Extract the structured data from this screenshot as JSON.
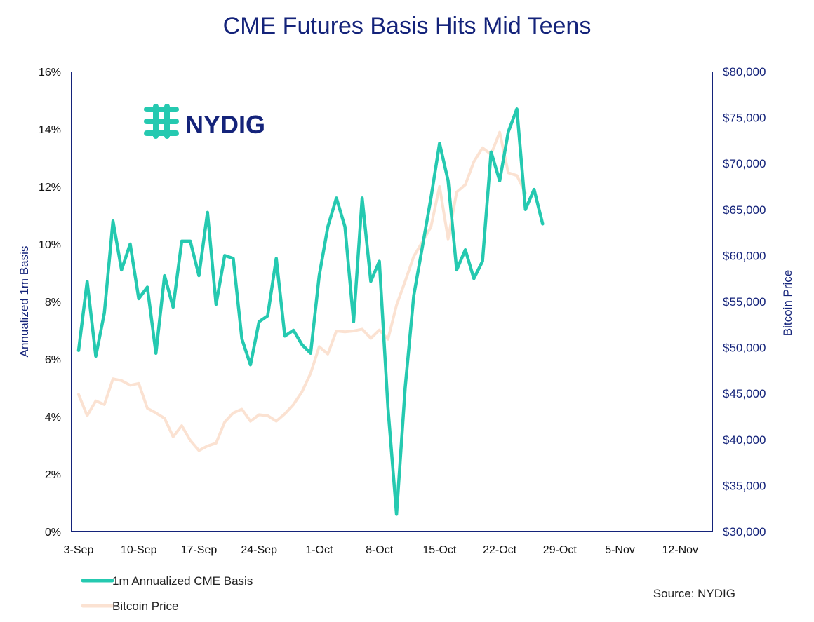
{
  "colors": {
    "basis": "#25c9b0",
    "price": "#fbe2d2",
    "axis": "#14237a",
    "text": "#111111"
  },
  "logo": {
    "text": "NYDIG",
    "icon": "nydig-logo-icon"
  },
  "source": "Source: NYDIG",
  "chart_data": {
    "type": "line",
    "title": "CME Futures Basis Hits Mid Teens",
    "ylabel": "Annualized 1m Basis",
    "y2label": "Bitcoin Price",
    "ylim": [
      0,
      16
    ],
    "y2lim": [
      30000,
      80000
    ],
    "x_tick_labels": [
      "3-Sep",
      "10-Sep",
      "17-Sep",
      "24-Sep",
      "1-Oct",
      "8-Oct",
      "15-Oct",
      "22-Oct",
      "29-Oct",
      "5-Nov",
      "12-Nov"
    ],
    "x_tick_days": [
      0,
      7,
      14,
      21,
      28,
      35,
      42,
      49,
      56,
      63,
      70
    ],
    "x_range": [
      0,
      73
    ],
    "y_tick_labels": [
      "0%",
      "2%",
      "4%",
      "6%",
      "8%",
      "10%",
      "12%",
      "14%",
      "16%"
    ],
    "y_tick_values": [
      0,
      2,
      4,
      6,
      8,
      10,
      12,
      14,
      16
    ],
    "y2_tick_labels": [
      "$30,000",
      "$35,000",
      "$40,000",
      "$45,000",
      "$50,000",
      "$55,000",
      "$60,000",
      "$65,000",
      "$70,000",
      "$75,000",
      "$80,000"
    ],
    "y2_tick_values": [
      30000,
      35000,
      40000,
      45000,
      50000,
      55000,
      60000,
      65000,
      70000,
      75000,
      80000
    ],
    "series": [
      {
        "name": "1m Annualized CME Basis",
        "axis": "left",
        "x": [
          0,
          1,
          2,
          3,
          4,
          5,
          6,
          7,
          8,
          9,
          10,
          11,
          12,
          13,
          14,
          15,
          16,
          17,
          18,
          19,
          20,
          21,
          22,
          23,
          24,
          25,
          26,
          27,
          28,
          29,
          30,
          31,
          32,
          33,
          34,
          35,
          36,
          37,
          38,
          39,
          40,
          41,
          42,
          43,
          44,
          45,
          46,
          47,
          48,
          49,
          50,
          51,
          52,
          53,
          54,
          55,
          56,
          57,
          58,
          59,
          60,
          61,
          62,
          63,
          64,
          65,
          66,
          67,
          68,
          69,
          70,
          71,
          72,
          73
        ],
        "values": [
          6.3,
          8.7,
          6.1,
          7.6,
          10.8,
          9.1,
          10.0,
          8.1,
          8.5,
          6.2,
          8.9,
          7.8,
          10.1,
          10.1,
          8.9,
          11.1,
          7.9,
          9.6,
          9.5,
          6.7,
          5.8,
          7.3,
          7.5,
          9.5,
          6.8,
          7.0,
          6.5,
          6.2,
          8.9,
          10.6,
          11.6,
          10.6,
          7.3,
          11.6,
          8.7,
          9.4,
          4.3,
          0.6,
          5.0,
          8.2,
          9.9,
          11.6,
          13.5,
          12.2,
          9.1,
          9.8,
          8.8,
          9.4,
          13.2,
          12.2,
          13.9,
          14.7,
          11.2,
          11.9,
          10.7,
          null,
          null,
          null,
          null,
          null,
          null,
          null,
          null,
          null,
          null,
          null,
          null,
          null,
          null,
          null,
          null,
          null,
          null,
          null
        ]
      },
      {
        "name": "Bitcoin Price",
        "axis": "right",
        "x": [
          0,
          1,
          2,
          3,
          4,
          5,
          6,
          7,
          8,
          9,
          10,
          11,
          12,
          13,
          14,
          15,
          16,
          17,
          18,
          19,
          20,
          21,
          22,
          23,
          24,
          25,
          26,
          27,
          28,
          29,
          30,
          31,
          32,
          33,
          34,
          35,
          36,
          37,
          38,
          39,
          40,
          41,
          42,
          43,
          44,
          45,
          46,
          47,
          48,
          49,
          50,
          51,
          52,
          53,
          54,
          55
        ],
        "values": [
          44900,
          42600,
          44200,
          43800,
          46600,
          46400,
          45900,
          46100,
          43400,
          42900,
          42300,
          40300,
          41500,
          39900,
          38800,
          39300,
          39600,
          41900,
          42900,
          43300,
          42000,
          42700,
          42600,
          42000,
          42800,
          43800,
          45200,
          47200,
          50100,
          49300,
          51800,
          51700,
          51800,
          52000,
          51000,
          51900,
          50900,
          54600,
          57200,
          59900,
          61500,
          63100,
          67500,
          61800,
          66900,
          67700,
          70200,
          71700,
          71000,
          73400,
          69000,
          68700,
          66800,
          null,
          null,
          null
        ]
      }
    ],
    "legend": [
      "1m Annualized CME Basis",
      "Bitcoin Price"
    ]
  }
}
